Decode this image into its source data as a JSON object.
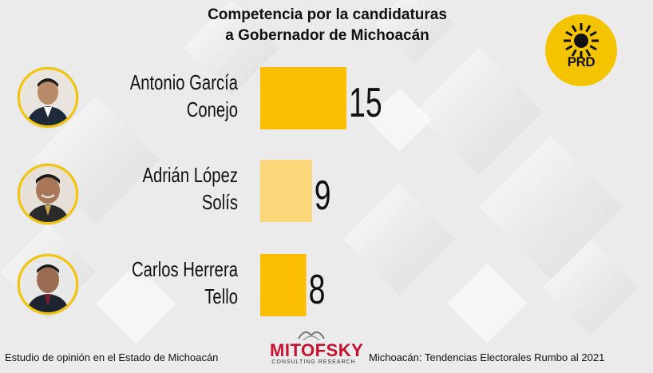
{
  "header": {
    "title_line1": "Competencia por la candidaturas",
    "title_line2": "a Gobernador de Michoacán"
  },
  "logo": {
    "text": "PRD",
    "color": "#f5c400",
    "icon": "prd-sun-icon"
  },
  "candidates": [
    {
      "line1": "Antonio García",
      "line2": "Conejo",
      "value_label": "15"
    },
    {
      "line1": "Adrián López",
      "line2": "Solís",
      "value_label": "9"
    },
    {
      "line1": "Carlos Herrera",
      "line2": "Tello",
      "value_label": "8"
    }
  ],
  "chart_data": {
    "type": "bar",
    "orientation": "horizontal",
    "categories": [
      "Antonio García Conejo",
      "Adrián López Solís",
      "Carlos Herrera Tello"
    ],
    "values": [
      15,
      9,
      8
    ],
    "colors": [
      "#fbbe00",
      "#fcd77a",
      "#fbbe00"
    ],
    "title": "Competencia por la candidaturas a Gobernador de Michoacán",
    "xlabel": "",
    "ylabel": "",
    "xlim": [
      0,
      15
    ],
    "grid": false
  },
  "footer": {
    "left": "Estudio de opinión en el Estado de Michoacán",
    "right": "Michoacán: Tendencias Electorales Rumbo al 2021",
    "brand": "MITOFSKY",
    "brand_sub": "CONSULTING RESEARCH"
  }
}
